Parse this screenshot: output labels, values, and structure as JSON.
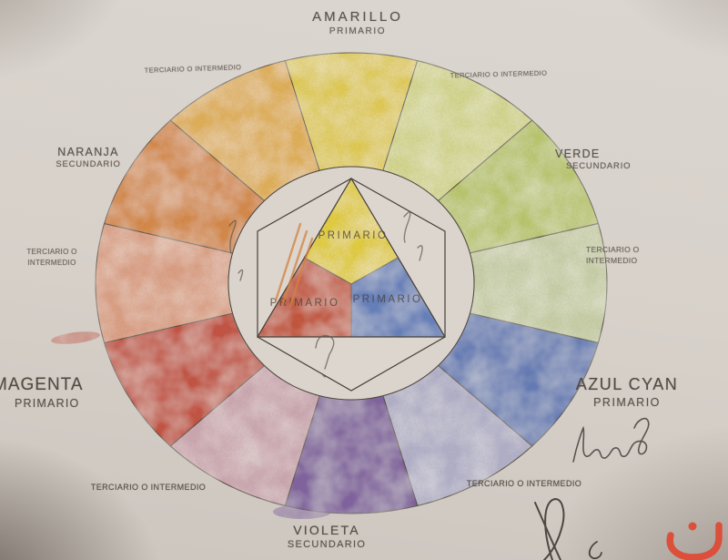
{
  "labels": {
    "amarillo": [
      "AMARILLO",
      "PRIMARIO"
    ],
    "terciario_top_left": [
      "TERCIARIO O INTERMEDIO"
    ],
    "terciario_top_right": [
      "TERCIARIO O INTERMEDIO"
    ],
    "naranja": [
      "NARANJA",
      "SECUNDARIO"
    ],
    "verde": [
      "VERDE",
      "SECUNDARIO"
    ],
    "terciario_left": [
      "TERCIARIO O",
      "INTERMEDIO"
    ],
    "terciario_right": [
      "TERCIARIO O",
      "INTERMEDIO"
    ],
    "magenta": [
      "MAGENTA",
      "PRIMARIO"
    ],
    "azul_cyan": [
      "AZUL CYAN",
      "PRIMARIO"
    ],
    "terciario_bottom_left": [
      "TERCIARIO O INTERMEDIO"
    ],
    "terciario_bottom_right": [
      "TERCIARIO O INTERMEDIO"
    ],
    "violeta": [
      "VIOLETA",
      "SECUNDARIO"
    ]
  },
  "inner": {
    "primario_top": "PRIMARIO",
    "primario_left": "PRIMARIO",
    "primario_right": "PRIMARIO",
    "triangle_colors": {
      "top": "#e6d13e",
      "left": "#c65137",
      "right": "#6080bf"
    }
  },
  "wheel": {
    "segments": [
      {
        "position": "12:00",
        "name": "amarillo-primario",
        "color": "#e4cf52"
      },
      {
        "position": "1:00",
        "name": "terciario-amarillo-verde",
        "color": "#d7da92"
      },
      {
        "position": "2:00",
        "name": "verde-secundario",
        "color": "#bcca6e"
      },
      {
        "position": "3:00",
        "name": "terciario-verde-azul",
        "color": "#cbd3ac"
      },
      {
        "position": "4:00",
        "name": "azul-cyan-primario",
        "color": "#5e7cba"
      },
      {
        "position": "5:00",
        "name": "terciario-azul-violeta",
        "color": "#b4b3cd"
      },
      {
        "position": "6:00",
        "name": "violeta-secundario",
        "color": "#7f60a2"
      },
      {
        "position": "7:00",
        "name": "terciario-violeta-magenta",
        "color": "#cfaab5"
      },
      {
        "position": "8:00",
        "name": "magenta-primario",
        "color": "#c6503f"
      },
      {
        "position": "9:00",
        "name": "terciario-magenta-naranja",
        "color": "#dfa287"
      },
      {
        "position": "10:00",
        "name": "naranja-secundario",
        "color": "#d88a46"
      },
      {
        "position": "11:00",
        "name": "terciario-naranja-amarillo",
        "color": "#e4b259"
      }
    ]
  },
  "annotations": {
    "handwritten_word": "trabajo",
    "ink_color": "#46403a",
    "watermark_color": "#dc4f3b"
  }
}
